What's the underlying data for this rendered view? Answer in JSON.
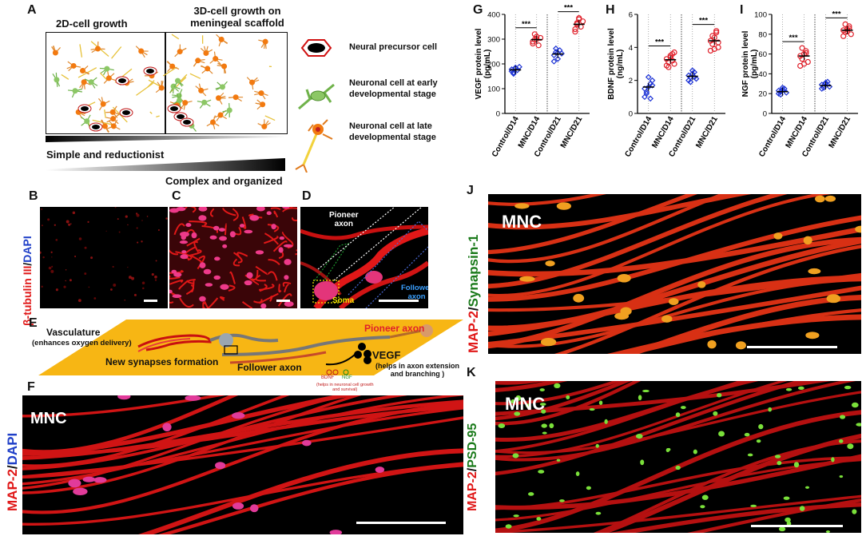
{
  "panel_a": {
    "letter": "A",
    "heading_2d": "2D-cell growth",
    "heading_3d_line1": "3D-cell growth on",
    "heading_3d_line2": "meningeal scaffold",
    "gradient_label_1": "Simple and reductionist",
    "gradient_label_2": "Complex and organized",
    "legend": [
      {
        "icon": "neural-precursor-cell-icon",
        "text": "Neural precursor cell"
      },
      {
        "icon": "early-neuron-icon",
        "text": "Neuronal cell at early developmental stage"
      },
      {
        "icon": "late-neuron-icon",
        "text": "Neuronal cell at late developmental stage"
      }
    ],
    "legend_lines": [
      [
        "Neural precursor cell"
      ],
      [
        "Neuronal cell at early",
        "developmental stage"
      ],
      [
        "Neuronal cell at late",
        "developmental stage"
      ]
    ]
  },
  "panel_b": {
    "letter": "B",
    "stain_part1": "β-tubulin III",
    "stain_sep": "/",
    "stain_part2": "DAPI"
  },
  "panel_c": {
    "letter": "C"
  },
  "panel_d": {
    "letter": "D",
    "pioneer_1": "Pioneer",
    "pioneer_2": "axon",
    "soma": "Soma",
    "follower_1": "Follower",
    "follower_2": "axon"
  },
  "panel_e": {
    "letter": "E",
    "vasculature": "Vasculature",
    "vasculature_note": "(enhances oxygen delivery)",
    "synapses": "New synapses formation",
    "follower_axon": "Follower axon",
    "pioneer_axon": "Pioneer axon",
    "vegf": "VEGF",
    "vegf_note_1": "(helps in axon extension",
    "vegf_note_2": "and branching )",
    "bdnf": "BDNF",
    "ngf": "NGF",
    "growth_note_1": "(helps in neuronal cell growth",
    "growth_note_2": "and survival)"
  },
  "panel_f": {
    "letter": "F",
    "mnc": "MNC",
    "stain_part1": "MAP-2",
    "stain_sep": "/",
    "stain_part2": "DAPI"
  },
  "panel_j": {
    "letter": "J",
    "mnc": "MNC",
    "stain_part1": "MAP-2",
    "stain_sep": "/",
    "stain_part2": "Synapsin-1"
  },
  "panel_k": {
    "letter": "K",
    "mnc": "MNC",
    "stain_part1": "MAP-2",
    "stain_sep": "/",
    "stain_part2": "PSD-95"
  },
  "colors": {
    "control": "#1f35d6",
    "mnc": "#e0202a",
    "stain_red": "#e01818",
    "stain_green": "#1a7a1a",
    "stain_blue": "#2040c8",
    "scaffold_yellow": "#f7b614"
  },
  "chart_data": [
    {
      "panel": "G",
      "type": "scatter",
      "ylabel": "VEGF protein level (pg/mL)",
      "ylim": [
        0,
        400
      ],
      "yticks": [
        0,
        100,
        200,
        300,
        400
      ],
      "categories": [
        "Control/D14",
        "MNC/D14",
        "Control/D21",
        "MNC/D21"
      ],
      "series": [
        {
          "values": [
            [
              170,
              165,
              182,
              175,
              188,
              178,
              160,
              185
            ]
          ]
        },
        {
          "values": [
            [
              282,
              298,
              310,
              275,
              305,
              290,
              320,
              300
            ]
          ]
        },
        {
          "values": [
            [
              235,
              248,
              220,
              255,
              242,
              210,
              262,
              245
            ]
          ]
        },
        {
          "values": [
            [
              340,
              365,
              380,
              350,
              372,
              330,
              360,
              385
            ]
          ]
        }
      ],
      "means": [
        176,
        298,
        240,
        360
      ],
      "significance": [
        {
          "between": [
            0,
            1
          ],
          "label": "***"
        },
        {
          "between": [
            2,
            3
          ],
          "label": "***"
        }
      ]
    },
    {
      "panel": "H",
      "type": "scatter",
      "ylabel": "BDNF protein level (ng/mL)",
      "ylim": [
        0,
        6
      ],
      "yticks": [
        0,
        2,
        4,
        6
      ],
      "categories": [
        "Control/D14",
        "MNC/D14",
        "Control/D21",
        "MNC/D21"
      ],
      "series": [
        {
          "values": [
            [
              1.0,
              1.3,
              1.6,
              1.8,
              2.0,
              1.5,
              1.2,
              2.2,
              0.9,
              1.7
            ]
          ]
        },
        {
          "values": [
            [
              2.9,
              3.1,
              3.4,
              3.6,
              3.0,
              3.3,
              2.8,
              3.5,
              3.2,
              3.7
            ]
          ]
        },
        {
          "values": [
            [
              2.0,
              2.2,
              2.4,
              2.5,
              2.1,
              2.3,
              1.9,
              2.6,
              2.2
            ]
          ]
        },
        {
          "values": [
            [
              3.8,
              4.2,
              4.6,
              4.9,
              4.0,
              4.4,
              4.7,
              3.9,
              5.0,
              4.3
            ]
          ]
        }
      ],
      "means": [
        1.6,
        3.25,
        2.25,
        4.4
      ],
      "significance": [
        {
          "between": [
            0,
            1
          ],
          "label": "***"
        },
        {
          "between": [
            2,
            3
          ],
          "label": "***"
        }
      ]
    },
    {
      "panel": "I",
      "type": "scatter",
      "ylabel": "NGF protein level (pg/mL)",
      "ylim": [
        0,
        100
      ],
      "yticks": [
        0,
        20,
        40,
        60,
        80,
        100
      ],
      "categories": [
        "Control/D14",
        "MNC/D14",
        "Control/D21",
        "MNC/D21"
      ],
      "series": [
        {
          "values": [
            [
              20,
              22,
              24,
              25,
              21,
              23,
              19,
              26
            ]
          ]
        },
        {
          "values": [
            [
              48,
              55,
              60,
              63,
              52,
              58,
              66,
              50,
              61
            ]
          ]
        },
        {
          "values": [
            [
              25,
              28,
              30,
              32,
              27,
              29,
              26,
              31
            ]
          ]
        },
        {
          "values": [
            [
              78,
              82,
              85,
              88,
              80,
              84,
              90,
              83,
              86
            ]
          ]
        }
      ],
      "means": [
        22,
        58,
        28,
        84
      ],
      "significance": [
        {
          "between": [
            0,
            1
          ],
          "label": "***"
        },
        {
          "between": [
            2,
            3
          ],
          "label": "***"
        }
      ]
    }
  ]
}
